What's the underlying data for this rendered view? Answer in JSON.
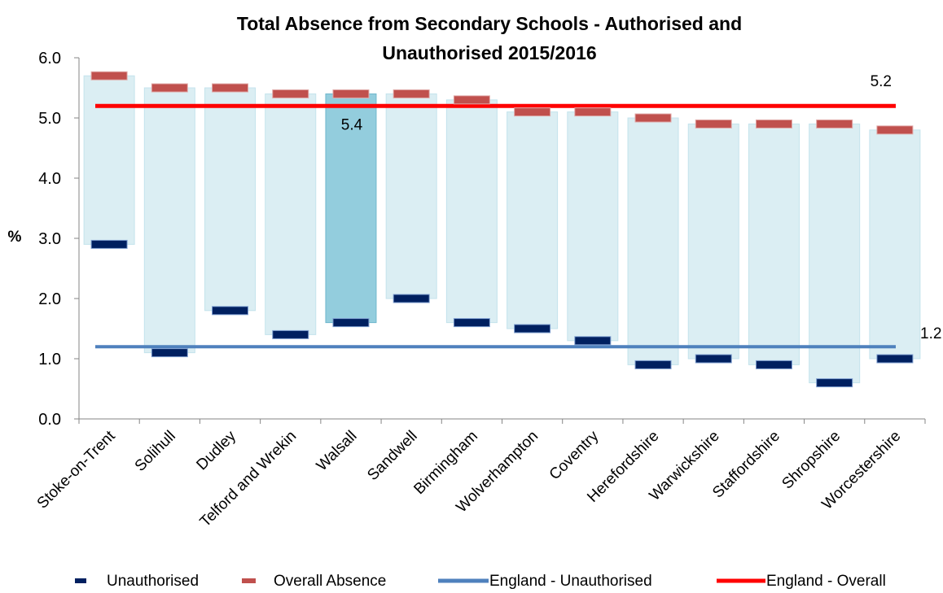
{
  "chart_data": {
    "type": "bar",
    "title_lines": [
      "Total Absence from Secondary Schools - Authorised and",
      "Unauthorised  2015/2016"
    ],
    "ylabel": "%",
    "ylim": [
      0,
      6
    ],
    "yticks": [
      "0.0",
      "1.0",
      "2.0",
      "3.0",
      "4.0",
      "5.0",
      "6.0"
    ],
    "categories": [
      "Stoke-on-Trent",
      "Solihull",
      "Dudley",
      "Telford and Wrekin",
      "Walsall",
      "Sandwell",
      "Birmingham",
      "Wolverhampton",
      "Coventry",
      "Herefordshire",
      "Warwickshire",
      "Staffordshire",
      "Shropshire",
      "Worcestershire"
    ],
    "series": [
      {
        "name": "Unauthorised",
        "values": [
          2.9,
          1.1,
          1.8,
          1.4,
          1.6,
          2.0,
          1.6,
          1.5,
          1.3,
          0.9,
          1.0,
          0.9,
          0.6,
          1.0
        ]
      },
      {
        "name": "Overall Absence",
        "values": [
          5.7,
          5.5,
          5.5,
          5.4,
          5.4,
          5.4,
          5.3,
          5.1,
          5.1,
          5.0,
          4.9,
          4.9,
          4.9,
          4.8
        ]
      }
    ],
    "reference_lines": [
      {
        "name": "England - Unauthorised",
        "value": 1.2,
        "label": "1.2",
        "color": "#4f81bd"
      },
      {
        "name": "England - Overall",
        "value": 5.2,
        "label": "5.2",
        "color": "#ff0000"
      }
    ],
    "highlight": {
      "category": "Walsall",
      "label": "5.4"
    },
    "colors": {
      "band": "#dbeef3",
      "band_highlight": "#93cddd",
      "unauthorised": "#002060",
      "overall": "#c0504d"
    },
    "legend_position": "bottom"
  }
}
